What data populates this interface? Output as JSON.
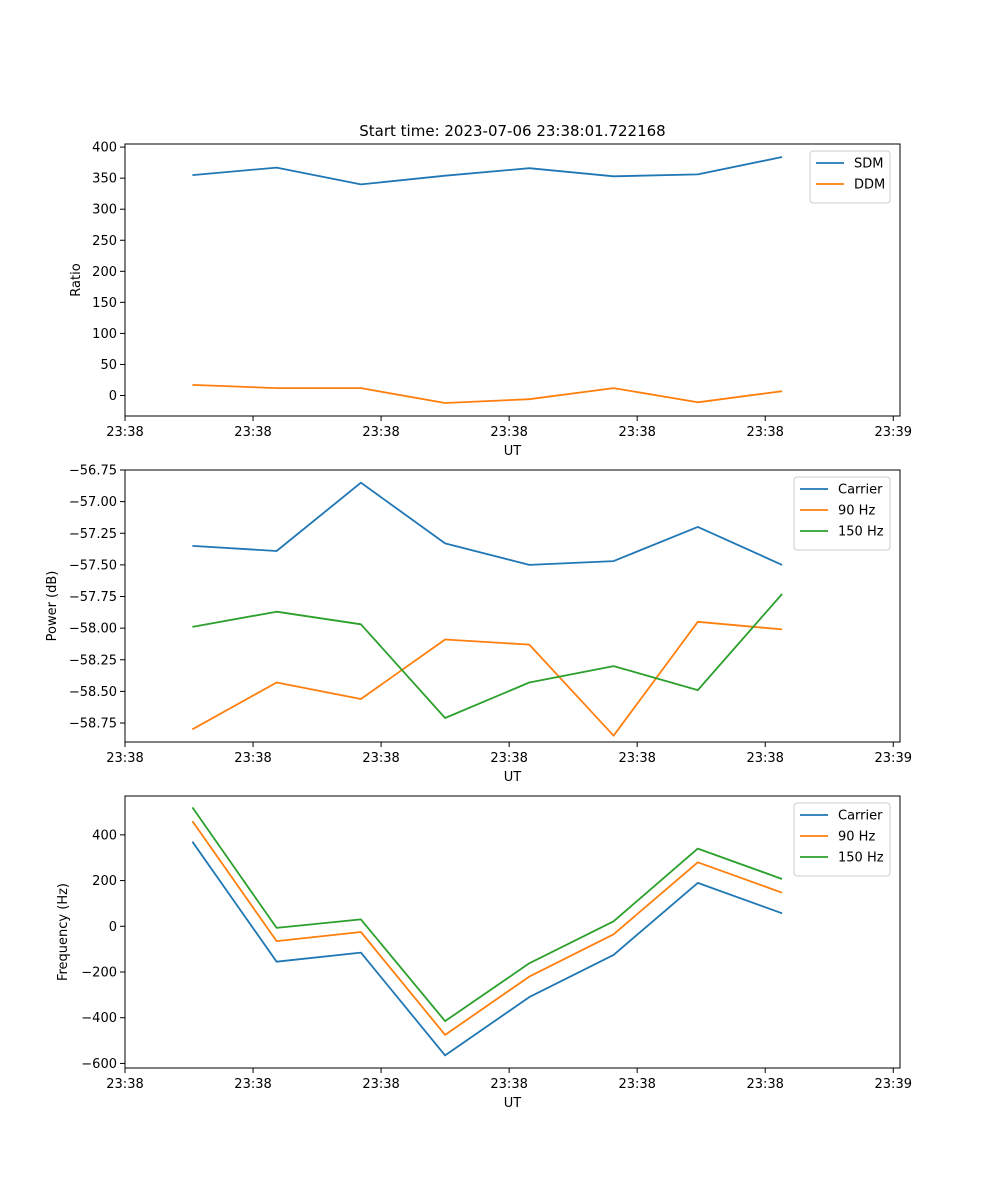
{
  "figure": {
    "title": "Start time: 2023-07-06 23:38:01.722168"
  },
  "chart_data": [
    {
      "type": "line",
      "title": "Start time: 2023-07-06 23:38:01.722168",
      "xlabel": "UT",
      "ylabel": "Ratio",
      "x": [
        1,
        2,
        3,
        4,
        5,
        6,
        7,
        8
      ],
      "xlim": [
        0.2,
        9.4
      ],
      "xticks": [
        0.2,
        1.72,
        3.24,
        4.76,
        6.28,
        7.8,
        9.32
      ],
      "xtick_labels": [
        "23:38",
        "23:38",
        "23:38",
        "23:38",
        "23:38",
        "23:38",
        "23:39"
      ],
      "ylim": [
        -33,
        405
      ],
      "yticks": [
        0,
        50,
        100,
        150,
        200,
        250,
        300,
        350,
        400
      ],
      "ytick_labels": [
        "0",
        "50",
        "100",
        "150",
        "200",
        "250",
        "300",
        "350",
        "400"
      ],
      "legend": "top-right",
      "series": [
        {
          "name": "SDM",
          "color": "#1f77b4",
          "values": [
            355,
            367,
            340,
            354,
            366,
            353,
            356,
            384
          ]
        },
        {
          "name": "DDM",
          "color": "#ff7f0e",
          "values": [
            17,
            12,
            12,
            -12,
            -6,
            12,
            -11,
            7
          ]
        }
      ]
    },
    {
      "type": "line",
      "title": "",
      "xlabel": "UT",
      "ylabel": "Power (dB)",
      "x": [
        1,
        2,
        3,
        4,
        5,
        6,
        7,
        8
      ],
      "xlim": [
        0.2,
        9.4
      ],
      "xticks": [
        0.2,
        1.72,
        3.24,
        4.76,
        6.28,
        7.8,
        9.32
      ],
      "xtick_labels": [
        "23:38",
        "23:38",
        "23:38",
        "23:38",
        "23:38",
        "23:38",
        "23:39"
      ],
      "ylim": [
        -58.9,
        -56.75
      ],
      "yticks": [
        -58.75,
        -58.5,
        -58.25,
        -58.0,
        -57.75,
        -57.5,
        -57.25,
        -57.0,
        -56.75
      ],
      "ytick_labels": [
        "−58.75",
        "−58.50",
        "−58.25",
        "−58.00",
        "−57.75",
        "−57.50",
        "−57.25",
        "−57.00",
        "−56.75"
      ],
      "legend": "top-right",
      "series": [
        {
          "name": "Carrier",
          "color": "#1f77b4",
          "values": [
            -57.35,
            -57.39,
            -56.85,
            -57.33,
            -57.5,
            -57.47,
            -57.2,
            -57.5
          ]
        },
        {
          "name": "90 Hz",
          "color": "#ff7f0e",
          "values": [
            -58.8,
            -58.43,
            -58.56,
            -58.09,
            -58.13,
            -58.85,
            -57.95,
            -58.01
          ]
        },
        {
          "name": "150 Hz",
          "color": "#2ca02c",
          "values": [
            -57.99,
            -57.87,
            -57.97,
            -58.71,
            -58.43,
            -58.3,
            -58.49,
            -57.73
          ]
        }
      ]
    },
    {
      "type": "line",
      "title": "",
      "xlabel": "UT",
      "ylabel": "Frequency (Hz)",
      "x": [
        1,
        2,
        3,
        4,
        5,
        6,
        7,
        8
      ],
      "xlim": [
        0.2,
        9.4
      ],
      "xticks": [
        0.2,
        1.72,
        3.24,
        4.76,
        6.28,
        7.8,
        9.32
      ],
      "xtick_labels": [
        "23:38",
        "23:38",
        "23:38",
        "23:38",
        "23:38",
        "23:38",
        "23:39"
      ],
      "ylim": [
        -620,
        570
      ],
      "yticks": [
        -600,
        -400,
        -200,
        0,
        200,
        400
      ],
      "ytick_labels": [
        "−600",
        "−400",
        "−200",
        "0",
        "200",
        "400"
      ],
      "legend": "top-right",
      "series": [
        {
          "name": "Carrier",
          "color": "#1f77b4",
          "values": [
            370,
            -155,
            -115,
            -565,
            -310,
            -125,
            190,
            57
          ]
        },
        {
          "name": "90 Hz",
          "color": "#ff7f0e",
          "values": [
            460,
            -65,
            -25,
            -475,
            -220,
            -35,
            280,
            147
          ]
        },
        {
          "name": "150 Hz",
          "color": "#2ca02c",
          "values": [
            520,
            -7,
            30,
            -415,
            -162,
            22,
            340,
            207
          ]
        }
      ]
    }
  ]
}
